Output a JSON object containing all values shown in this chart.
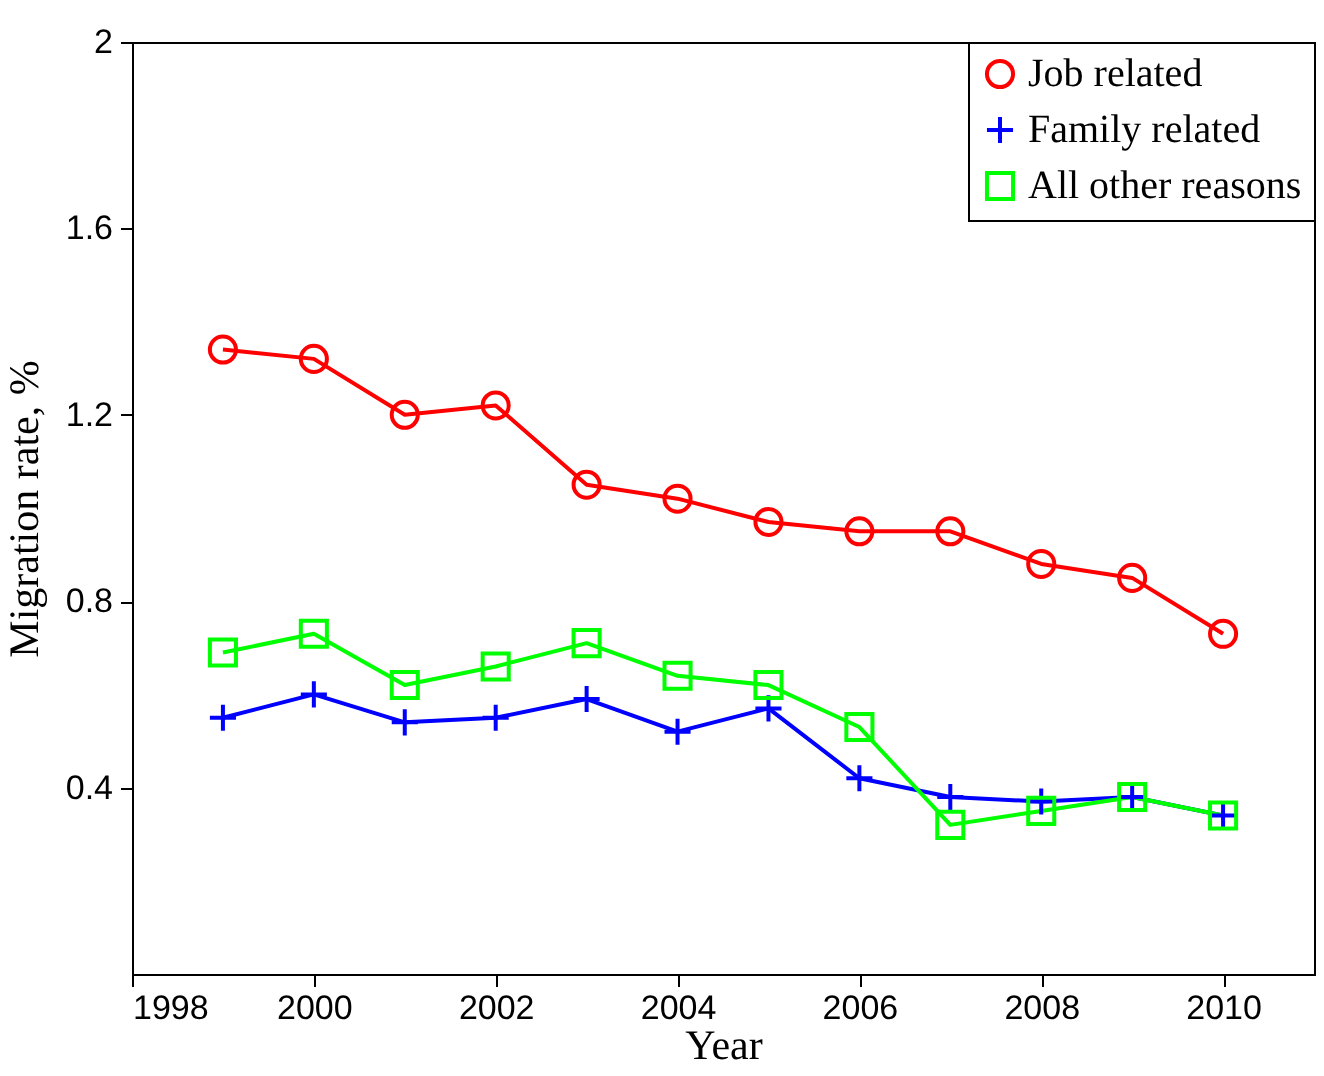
{
  "chart_data": {
    "type": "line",
    "xlabel": "Year",
    "ylabel": "Migration rate, %",
    "x": [
      1999,
      2000,
      2001,
      2002,
      2003,
      2004,
      2005,
      2006,
      2007,
      2008,
      2009,
      2010
    ],
    "series": [
      {
        "name": "Job related",
        "color": "#ff0000",
        "marker": "circle",
        "values": [
          1.34,
          1.32,
          1.2,
          1.22,
          1.05,
          1.02,
          0.97,
          0.95,
          0.95,
          0.88,
          0.85,
          0.73
        ]
      },
      {
        "name": "Family related",
        "color": "#0000ff",
        "marker": "cross",
        "values": [
          0.55,
          0.6,
          0.54,
          0.55,
          0.59,
          0.52,
          0.57,
          0.42,
          0.38,
          0.37,
          0.38,
          0.34
        ]
      },
      {
        "name": "All other reasons",
        "color": "#00ff00",
        "marker": "square",
        "values": [
          0.69,
          0.73,
          0.62,
          0.66,
          0.71,
          0.64,
          0.62,
          0.53,
          0.32,
          0.35,
          0.38,
          0.34
        ]
      }
    ],
    "xlim": [
      1998,
      2011
    ],
    "xticks": [
      1998,
      2000,
      2002,
      2004,
      2006,
      2008,
      2010
    ],
    "ylim": [
      0,
      2
    ],
    "yticks": [
      0.4,
      0.8,
      1.2,
      1.6,
      2
    ],
    "grid": false,
    "legend": "top right",
    "line_style": "solid"
  }
}
